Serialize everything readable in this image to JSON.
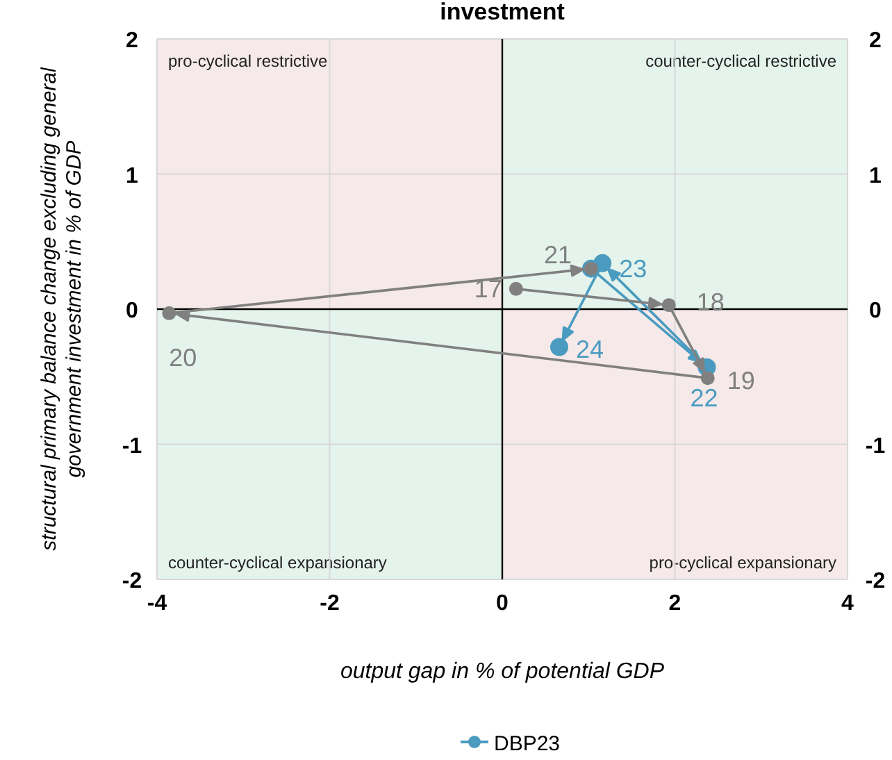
{
  "chart_data": {
    "type": "line",
    "title": "investment",
    "xlabel": "output gap in % of potential GDP",
    "ylabel": "structural primary balance change excluding general government investment in % of GDP",
    "xlim": [
      -4,
      4
    ],
    "xticks": [
      -4,
      -2,
      0,
      2,
      4
    ],
    "ylim": [
      -2,
      2
    ],
    "yticks": [
      -2,
      -1,
      0,
      1,
      2
    ],
    "y2lim": [
      -2,
      2
    ],
    "y2ticks": [
      -2,
      -1,
      0,
      1,
      2
    ],
    "grid": true,
    "legend": "bottom",
    "marker": "circle",
    "series": [
      {
        "color": "#808080",
        "x": [
          0.16,
          1.93,
          2.38,
          -3.86,
          1.03
        ],
        "values": [
          0.15,
          0.03,
          -0.51,
          -0.03,
          0.3
        ]
      },
      {
        "name": "DBP23",
        "color": "#4a9bbf",
        "x": [
          1.03,
          2.37,
          1.16,
          0.66
        ],
        "values": [
          0.3,
          -0.43,
          0.34,
          -0.28
        ]
      }
    ],
    "bands": [
      {
        "axis": "y",
        "from": 0,
        "to": 2
      },
      {
        "axis": "y",
        "from": -2,
        "to": 0
      }
    ],
    "annotations": [
      "pro-cyclical restrictive",
      "counter-cyclical restrictive",
      "counter-cyclical expansionary",
      "pro-cyclical expansionary",
      {
        "text": "17",
        "x": 0.16,
        "y": 0.15
      },
      {
        "text": "18",
        "x": 1.93,
        "y": 0.03
      },
      {
        "text": "19",
        "x": 2.38,
        "y": -0.51
      },
      {
        "text": "20",
        "x": -3.86,
        "y": -0.03
      },
      {
        "text": "21",
        "x": 1.03,
        "y": 0.3
      },
      {
        "text": "22",
        "x": 2.37,
        "y": -0.43
      },
      {
        "text": "23",
        "x": 1.16,
        "y": 0.34
      },
      {
        "text": "24",
        "x": 0.66,
        "y": -0.28
      }
    ]
  }
}
